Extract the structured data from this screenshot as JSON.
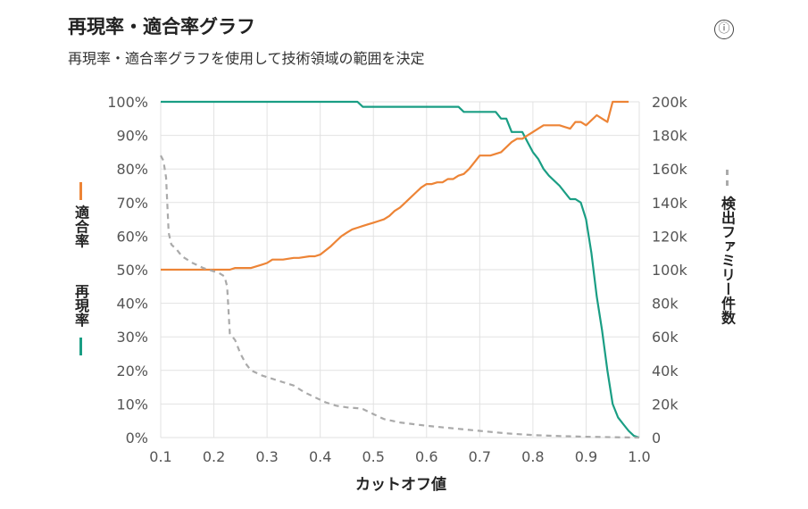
{
  "header": {
    "title": "再現率・適合率グラフ",
    "subtitle": "再現率・適合率グラフを使用して技術領域の範囲を決定",
    "info_icon": "ⓘ"
  },
  "chart_data": {
    "type": "line",
    "xlabel": "カットオフ値",
    "ylabel_left_a": "再現率",
    "ylabel_left_b": "適合率",
    "ylabel_right": "検出ファミリー件数",
    "xlim": [
      0.1,
      1.0
    ],
    "ylim_left": [
      0,
      100
    ],
    "ylim_right": [
      0,
      200000
    ],
    "x_ticks": [
      "0.1",
      "0.2",
      "0.3",
      "0.4",
      "0.5",
      "0.6",
      "0.7",
      "0.8",
      "0.9",
      "1.0"
    ],
    "y_left_ticks": [
      "0%",
      "10%",
      "20%",
      "30%",
      "40%",
      "50%",
      "60%",
      "70%",
      "80%",
      "90%",
      "100%"
    ],
    "y_right_ticks": [
      "0",
      "20k",
      "40k",
      "60k",
      "80k",
      "100k",
      "120k",
      "140k",
      "160k",
      "180k",
      "200k"
    ],
    "grid": true,
    "colors": {
      "recall": "#1a9e84",
      "precision": "#ed8436",
      "count": "#aaaaaa"
    },
    "series": [
      {
        "name": "再現率",
        "axis": "left",
        "color": "#1a9e84",
        "x": [
          0.1,
          0.2,
          0.3,
          0.4,
          0.47,
          0.48,
          0.55,
          0.6,
          0.66,
          0.67,
          0.7,
          0.72,
          0.73,
          0.74,
          0.75,
          0.76,
          0.77,
          0.78,
          0.79,
          0.8,
          0.81,
          0.82,
          0.83,
          0.85,
          0.87,
          0.88,
          0.89,
          0.9,
          0.91,
          0.92,
          0.93,
          0.94,
          0.95,
          0.96,
          0.97,
          0.98,
          0.99,
          1.0
        ],
        "y": [
          100,
          100,
          100,
          100,
          100,
          98.5,
          98.5,
          98.5,
          98.5,
          97,
          97,
          97,
          97,
          95,
          95,
          91,
          91,
          91,
          88,
          85,
          83,
          80,
          78,
          75,
          71,
          71,
          70,
          65,
          55,
          42,
          32,
          20,
          10,
          6,
          4,
          2,
          0.5,
          0
        ]
      },
      {
        "name": "適合率",
        "axis": "left",
        "color": "#ed8436",
        "x": [
          0.1,
          0.15,
          0.2,
          0.23,
          0.24,
          0.27,
          0.29,
          0.3,
          0.31,
          0.33,
          0.35,
          0.36,
          0.38,
          0.39,
          0.4,
          0.42,
          0.43,
          0.44,
          0.45,
          0.46,
          0.47,
          0.48,
          0.49,
          0.5,
          0.51,
          0.52,
          0.53,
          0.54,
          0.55,
          0.56,
          0.57,
          0.58,
          0.59,
          0.6,
          0.61,
          0.62,
          0.63,
          0.64,
          0.65,
          0.66,
          0.67,
          0.68,
          0.69,
          0.7,
          0.71,
          0.72,
          0.73,
          0.74,
          0.75,
          0.76,
          0.77,
          0.78,
          0.79,
          0.8,
          0.81,
          0.82,
          0.83,
          0.85,
          0.86,
          0.87,
          0.88,
          0.89,
          0.9,
          0.91,
          0.92,
          0.93,
          0.94,
          0.95,
          0.96,
          0.97,
          0.98
        ],
        "y": [
          50,
          50,
          50,
          50,
          50.5,
          50.5,
          51.5,
          52,
          53,
          53,
          53.5,
          53.5,
          54,
          54,
          54.5,
          57,
          58.5,
          60,
          61,
          62,
          62.5,
          63,
          63.5,
          64,
          64.5,
          65,
          66,
          67.5,
          68.5,
          70,
          71.5,
          73,
          74.5,
          75.5,
          75.5,
          76,
          76,
          77,
          77,
          78,
          78.5,
          80,
          82,
          84,
          84,
          84,
          84.5,
          85,
          86.5,
          88,
          89,
          89,
          90,
          91,
          92,
          93,
          93,
          93,
          92.5,
          92,
          94,
          94,
          93,
          94.5,
          96,
          95,
          94,
          100,
          100,
          100,
          100
        ]
      },
      {
        "name": "検出ファミリー件数",
        "axis": "right",
        "color": "#aaaaaa",
        "x": [
          0.1,
          0.105,
          0.11,
          0.115,
          0.12,
          0.13,
          0.14,
          0.16,
          0.18,
          0.2,
          0.21,
          0.22,
          0.225,
          0.23,
          0.24,
          0.25,
          0.26,
          0.27,
          0.29,
          0.31,
          0.33,
          0.35,
          0.37,
          0.39,
          0.41,
          0.43,
          0.45,
          0.47,
          0.48,
          0.5,
          0.52,
          0.55,
          0.6,
          0.65,
          0.7,
          0.75,
          0.8,
          0.85,
          0.9,
          0.95,
          1.0
        ],
        "y": [
          168000,
          165000,
          155000,
          122000,
          115000,
          112000,
          108000,
          104000,
          101000,
          99000,
          98000,
          96000,
          90000,
          62000,
          58000,
          50000,
          44000,
          40000,
          37000,
          35000,
          33000,
          31000,
          27000,
          24000,
          21000,
          19000,
          18000,
          17500,
          17000,
          14000,
          11000,
          9000,
          7000,
          5500,
          4000,
          2500,
          1500,
          900,
          500,
          200,
          0
        ]
      }
    ]
  }
}
